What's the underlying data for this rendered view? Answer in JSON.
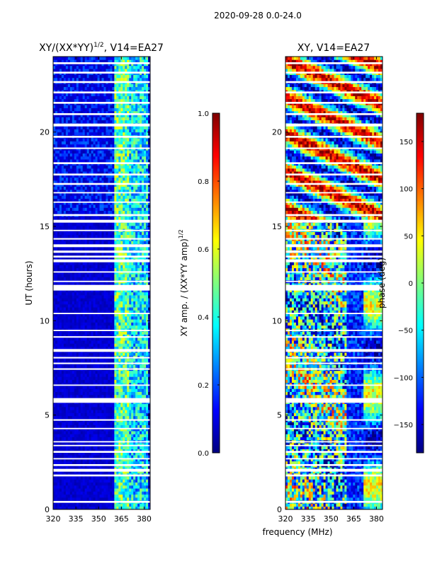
{
  "figure": {
    "suptitle": "2020-09-28 0.0-24.0",
    "xlabel": "frequency (MHz)",
    "ylabel": "UT (hours)"
  },
  "colors": {
    "jet": [
      "#00007f",
      "#0000ff",
      "#007fff",
      "#00ffff",
      "#7fff7f",
      "#ffff00",
      "#ff7f00",
      "#ff0000",
      "#7f0000"
    ],
    "gap": "#ffffff",
    "frame": "#000000"
  },
  "chart_data": [
    {
      "type": "heatmap",
      "name": "amplitude",
      "title": "XY/(XX*YY)",
      "title_sup": "1/2",
      "title_suffix": ", V14=EA27",
      "xlim": [
        320,
        384
      ],
      "ylim": [
        0,
        24
      ],
      "xticks": [
        320,
        335,
        350,
        365,
        380
      ],
      "yticks": [
        0,
        5,
        10,
        15,
        20
      ],
      "ylabel": "UT (hours)",
      "colorbar": {
        "label": "XY amp. / (XX*YY amp)",
        "label_sup": "1/2",
        "range": [
          0.0,
          1.0
        ],
        "ticks": [
          "0.0",
          "0.2",
          "0.4",
          "0.6",
          "0.8",
          "1.0"
        ],
        "tick_values": [
          0.0,
          0.2,
          0.4,
          0.6,
          0.8,
          1.0
        ]
      },
      "band_structure": [
        {
          "freq_range": [
            320,
            361
          ],
          "typical_value": 0.08
        },
        {
          "freq_range": [
            361,
            370
          ],
          "typical_value": 0.45
        },
        {
          "freq_range": [
            370,
            382
          ],
          "typical_value": 0.35
        }
      ]
    },
    {
      "type": "heatmap",
      "name": "phase",
      "title": "XY, V14=EA27",
      "xlim": [
        320,
        384
      ],
      "ylim": [
        0,
        24
      ],
      "xticks": [
        320,
        335,
        350,
        365,
        380
      ],
      "yticks": [
        0,
        5,
        10,
        15,
        20
      ],
      "colorbar": {
        "label": "phase (deg)",
        "range": [
          -180,
          180
        ],
        "ticks": [
          "−150",
          "−100",
          "−50",
          "0",
          "50",
          "100",
          "150"
        ],
        "tick_values": [
          -150,
          -100,
          -50,
          0,
          50,
          100,
          150
        ]
      }
    }
  ],
  "data_gaps_ut_hours": [
    [
      0.35,
      0.45
    ],
    [
      1.75,
      1.85
    ],
    [
      2.0,
      2.15
    ],
    [
      2.3,
      2.4
    ],
    [
      2.65,
      2.72
    ],
    [
      3.0,
      3.1
    ],
    [
      3.35,
      3.42
    ],
    [
      3.55,
      3.62
    ],
    [
      4.25,
      4.32
    ],
    [
      4.7,
      4.78
    ],
    [
      5.65,
      5.9
    ],
    [
      6.55,
      6.62
    ],
    [
      7.4,
      7.48
    ],
    [
      7.7,
      7.78
    ],
    [
      8.0,
      8.08
    ],
    [
      8.35,
      8.5
    ],
    [
      9.1,
      9.18
    ],
    [
      9.45,
      9.52
    ],
    [
      10.35,
      10.42
    ],
    [
      11.6,
      11.9
    ],
    [
      12.05,
      12.12
    ],
    [
      12.55,
      12.62
    ],
    [
      13.1,
      13.25
    ],
    [
      13.35,
      13.45
    ],
    [
      13.6,
      13.72
    ],
    [
      13.9,
      14.05
    ],
    [
      14.3,
      14.38
    ],
    [
      14.75,
      14.82
    ],
    [
      15.2,
      15.35
    ],
    [
      15.55,
      15.65
    ],
    [
      16.25,
      16.32
    ],
    [
      16.75,
      16.82
    ],
    [
      17.2,
      17.3
    ],
    [
      17.7,
      17.8
    ],
    [
      18.3,
      18.4
    ],
    [
      19.1,
      19.18
    ],
    [
      19.7,
      19.8
    ],
    [
      20.3,
      20.45
    ],
    [
      20.9,
      21.0
    ],
    [
      21.5,
      21.6
    ],
    [
      22.05,
      22.15
    ],
    [
      22.6,
      22.7
    ],
    [
      23.1,
      23.2
    ],
    [
      23.6,
      23.7
    ]
  ]
}
